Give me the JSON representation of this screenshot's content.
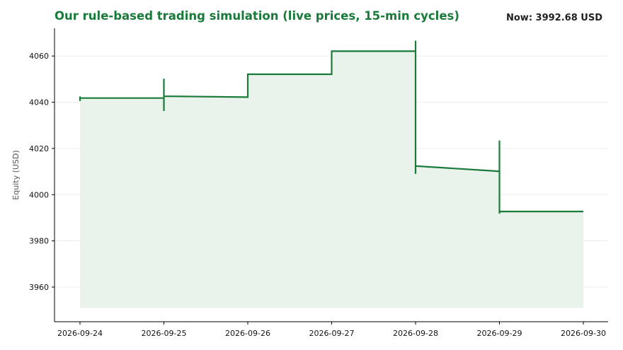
{
  "header": {
    "title": "Our rule-based trading simulation (live prices, 15-min cycles)",
    "now_label": "Now: 3992.68 USD"
  },
  "chart_data": {
    "type": "area",
    "title": "Our rule-based trading simulation (live prices, 15-min cycles)",
    "xlabel": "",
    "ylabel": "Equity (USD)",
    "xlim": [
      "2026-09-24",
      "2026-09-30"
    ],
    "ylim": [
      3945,
      4072
    ],
    "x_ticks": [
      "2026-09-24",
      "2026-09-25",
      "2026-09-26",
      "2026-09-27",
      "2026-09-28",
      "2026-09-29",
      "2026-09-30"
    ],
    "y_ticks": [
      3960,
      3980,
      4000,
      4020,
      4040,
      4060
    ],
    "fill_base": 3951,
    "grid": true,
    "legend": "none",
    "colors": {
      "line": "#1a7a3a",
      "fill": "#e9f3ec",
      "grid": "#ebebeb",
      "axis": "#000000"
    },
    "series": [
      {
        "points": [
          [
            "2026-09-24T00:00",
            4040.5
          ],
          [
            "2026-09-24T00:00",
            4042.5
          ],
          [
            "2026-09-24T00:00",
            4041.8
          ],
          [
            "2026-09-25T00:00",
            4041.8
          ],
          [
            "2026-09-25T00:00",
            4050.2
          ],
          [
            "2026-09-25T00:00",
            4036.2
          ],
          [
            "2026-09-25T00:00",
            4042.6
          ],
          [
            "2026-09-26T00:00",
            4042.2
          ],
          [
            "2026-09-26T00:00",
            4052.1
          ],
          [
            "2026-09-27T00:00",
            4052.1
          ],
          [
            "2026-09-27T00:00",
            4062.1
          ],
          [
            "2026-09-28T00:00",
            4062.1
          ],
          [
            "2026-09-28T00:00",
            4066.6
          ],
          [
            "2026-09-28T00:00",
            4009.0
          ],
          [
            "2026-09-28T00:00",
            4012.4
          ],
          [
            "2026-09-29T00:00",
            4010.1
          ],
          [
            "2026-09-29T00:00",
            4023.4
          ],
          [
            "2026-09-29T00:00",
            3991.8
          ],
          [
            "2026-09-29T00:00",
            3992.7
          ],
          [
            "2026-09-30T00:00",
            3992.7
          ]
        ]
      }
    ]
  }
}
